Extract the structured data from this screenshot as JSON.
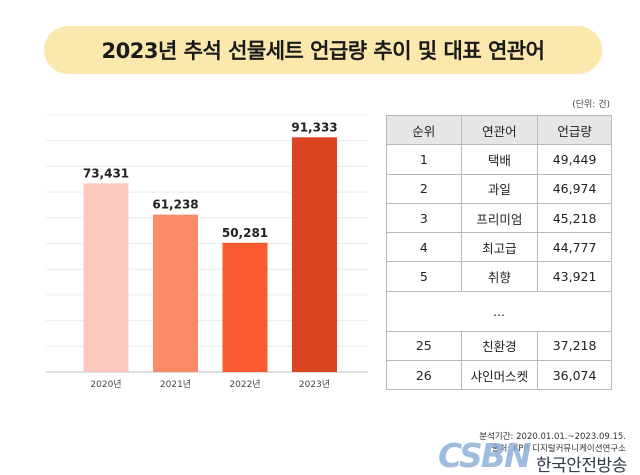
{
  "title": "2023년 추석 선물세트 언급량 추이 및 대표 연관어",
  "unit_label": "(단위: 건)",
  "chart_data": {
    "type": "bar",
    "categories": [
      "2020년",
      "2021년",
      "2022년",
      "2023년"
    ],
    "values": [
      73431,
      61238,
      50281,
      91333
    ],
    "value_labels": [
      "73,431",
      "61,238",
      "50,281",
      "91,333"
    ],
    "colors": [
      "#fdc8bd",
      "#fb8a68",
      "#fb5a31",
      "#db4422"
    ],
    "ylim": [
      0,
      100000
    ],
    "grid": true
  },
  "table": {
    "headers": [
      "순위",
      "연관어",
      "언급량"
    ],
    "rows": [
      [
        "1",
        "택배",
        "49,449"
      ],
      [
        "2",
        "과일",
        "46,974"
      ],
      [
        "3",
        "프리미엄",
        "45,218"
      ],
      [
        "4",
        "최고급",
        "44,777"
      ],
      [
        "5",
        "취향",
        "43,921"
      ],
      [
        "...",
        "",
        ""
      ],
      [
        "25",
        "친환경",
        "37,218"
      ],
      [
        "26",
        "샤인머스켓",
        "36,074"
      ]
    ]
  },
  "footer": {
    "period": "분석기간: 2020.01.01.~2023.09.15.",
    "source": "출처: KPR 디지털커뮤니케이션연구소"
  },
  "logo": {
    "mark": "CSBN",
    "name": "한국안전방송"
  }
}
